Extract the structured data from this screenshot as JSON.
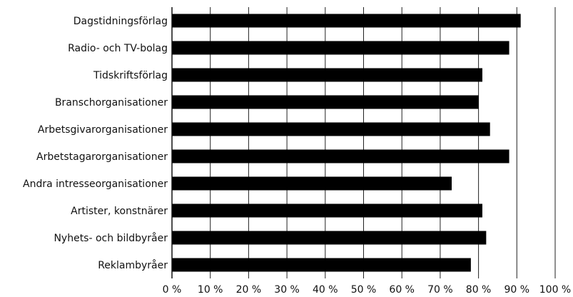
{
  "chart_data": {
    "type": "bar",
    "orientation": "horizontal",
    "title": "",
    "xlabel": "",
    "ylabel": "",
    "categories": [
      "Dagstidningsförlag",
      "Radio- och TV-bolag",
      "Tidskriftsförlag",
      "Branschorganisationer",
      "Arbetsgivarorganisationer",
      "Arbetstagarorganisationer",
      "Andra intresseorganisationer",
      "Artister, konstnärer",
      "Nyhets- och bildbyråer",
      "Reklambyråer"
    ],
    "values": [
      91,
      88,
      81,
      80,
      83,
      88,
      73,
      81,
      82,
      78
    ],
    "xlim": [
      0,
      100
    ],
    "x_ticks": [
      0,
      10,
      20,
      30,
      40,
      50,
      60,
      70,
      80,
      90,
      100
    ],
    "x_tick_labels": [
      "0 %",
      "10 %",
      "20 %",
      "30 %",
      "40 %",
      "50 %",
      "60 %",
      "70 %",
      "80 %",
      "90 %",
      "100 %"
    ],
    "grid": "vertical",
    "legend": "none",
    "colors": {
      "bar": "#000000",
      "grid": "#222222",
      "background": "#ffffff"
    }
  }
}
